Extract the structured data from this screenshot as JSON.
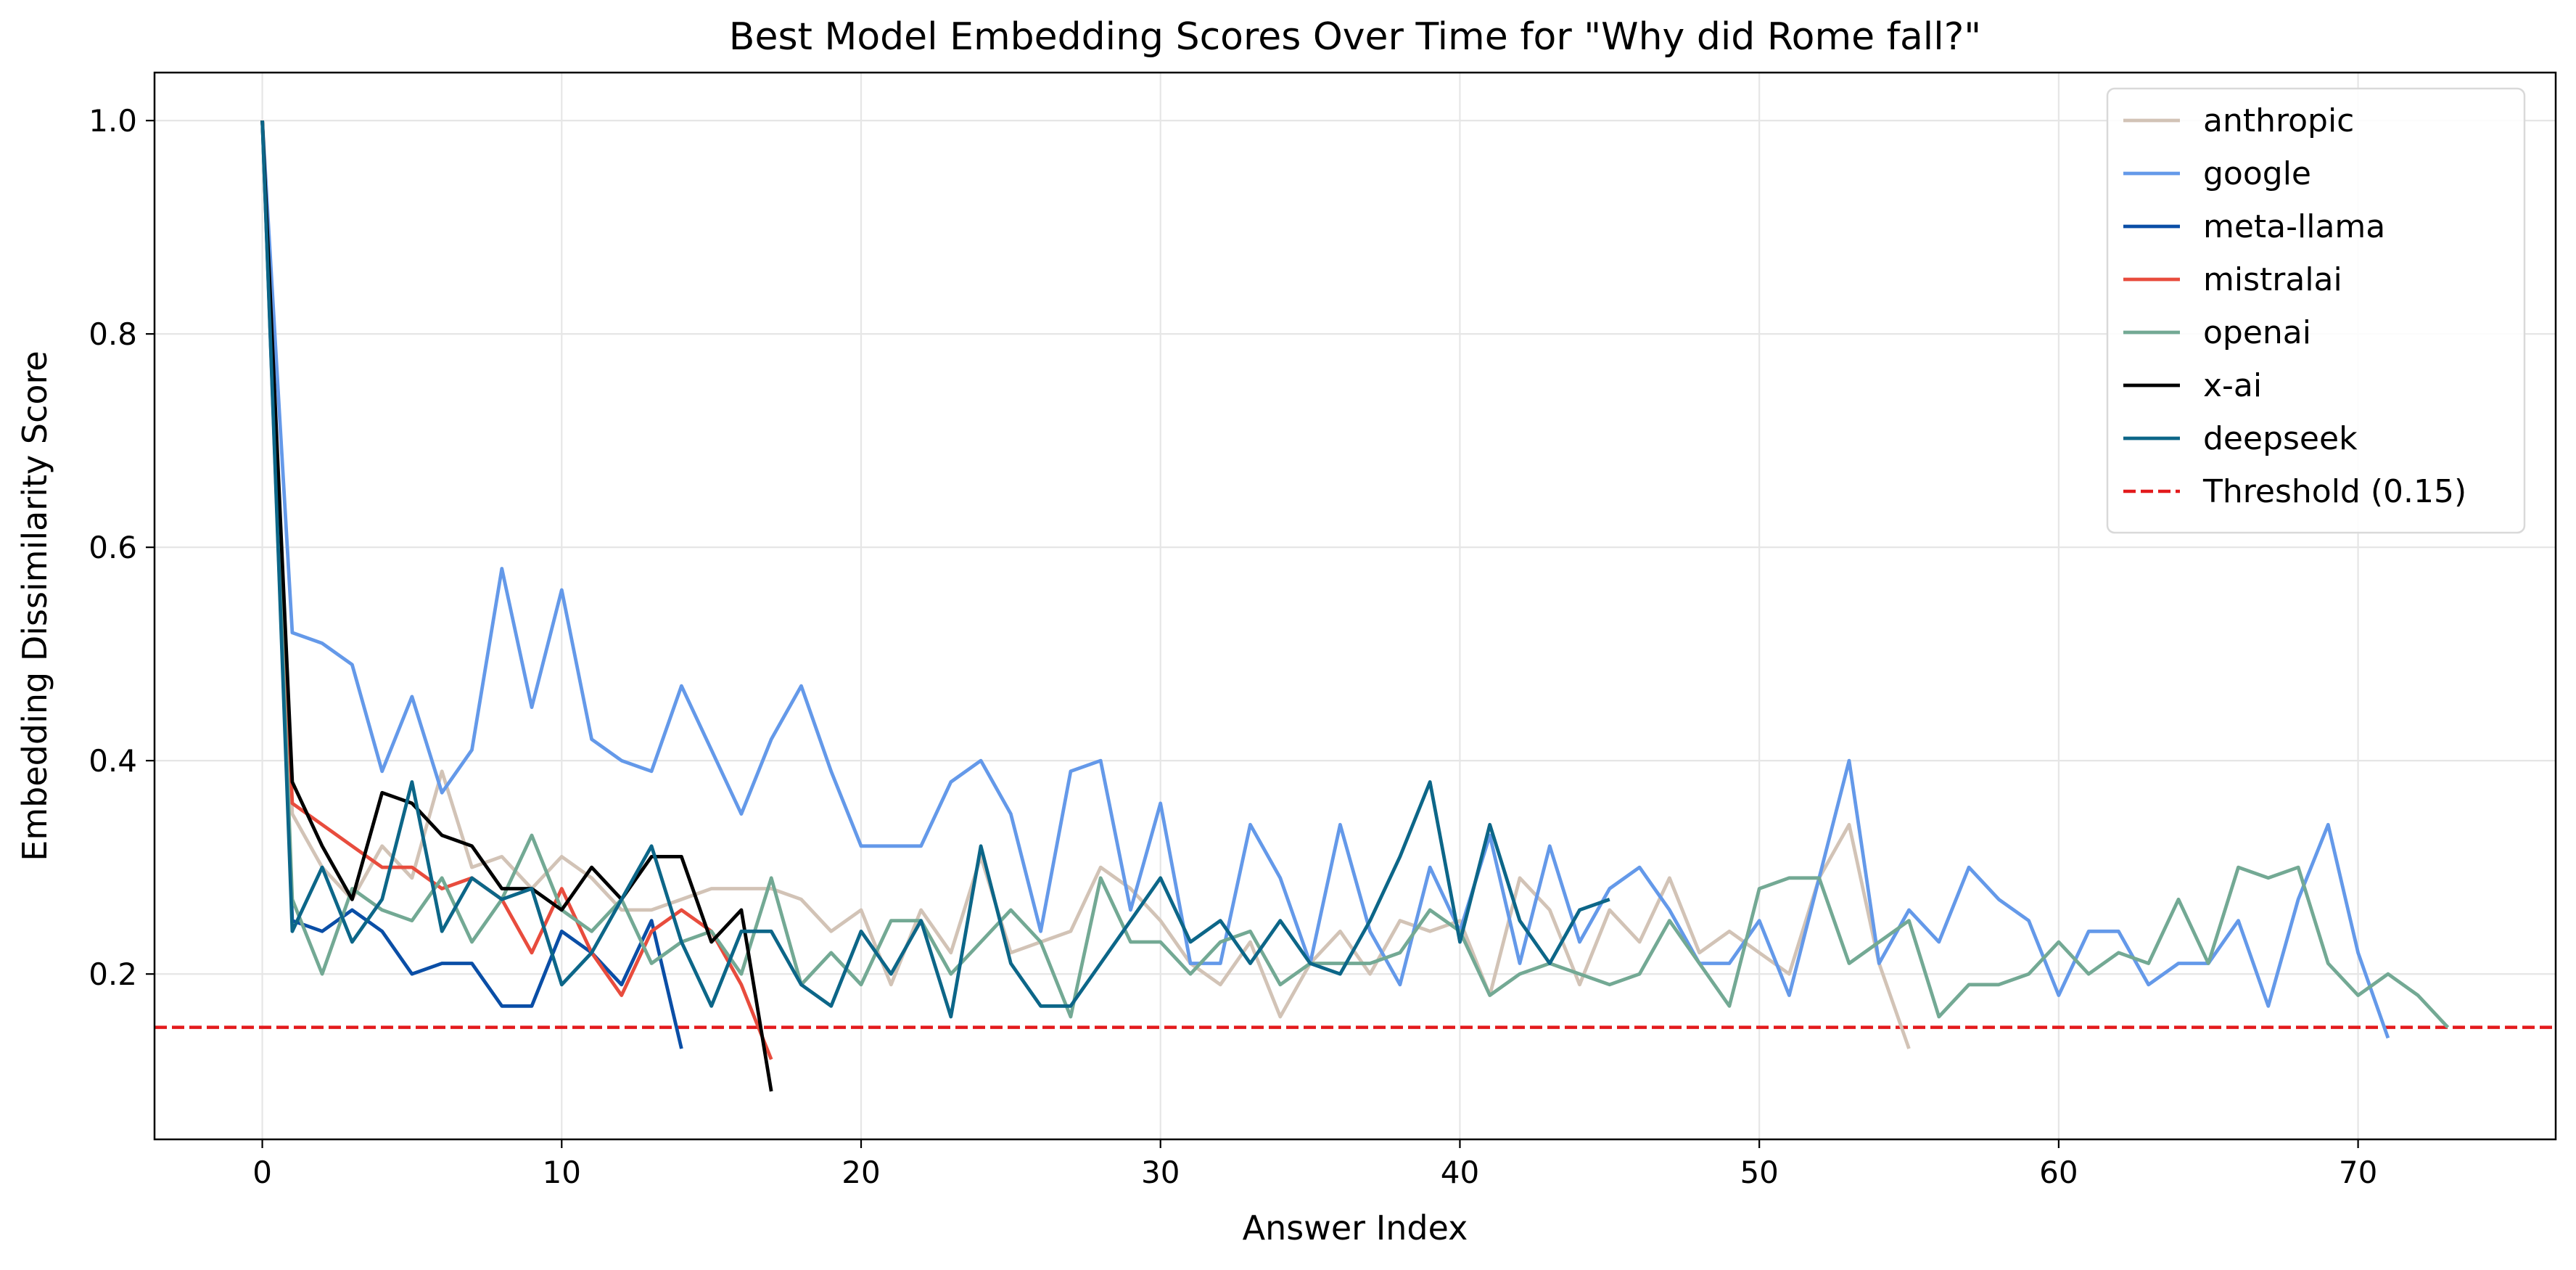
{
  "chart_data": {
    "type": "line",
    "title": "Best Model Embedding Scores Over Time for \"Why did Rome fall?\"",
    "xlabel": "Answer Index",
    "ylabel": "Embedding Dissimilarity Score",
    "xlim": [
      -3.6,
      76.6
    ],
    "ylim": [
      0.045,
      1.045
    ],
    "xticks": [
      0,
      10,
      20,
      30,
      40,
      50,
      60,
      70
    ],
    "yticks": [
      0.2,
      0.4,
      0.6,
      0.8,
      1.0
    ],
    "grid": true,
    "legend_position": "top-right",
    "series": [
      {
        "name": "anthropic",
        "color": "#d2c3b6",
        "values": [
          1.0,
          0.35,
          0.3,
          0.27,
          0.32,
          0.29,
          0.39,
          0.3,
          0.31,
          0.28,
          0.31,
          0.29,
          0.26,
          0.26,
          0.27,
          0.28,
          0.28,
          0.28,
          0.27,
          0.24,
          0.26,
          0.19,
          0.26,
          0.22,
          0.31,
          0.22,
          0.23,
          0.24,
          0.3,
          0.28,
          0.25,
          0.21,
          0.19,
          0.23,
          0.16,
          0.21,
          0.24,
          0.2,
          0.25,
          0.24,
          0.25,
          0.18,
          0.29,
          0.26,
          0.19,
          0.26,
          0.23,
          0.29,
          0.22,
          0.24,
          0.22,
          0.2,
          0.29,
          0.34,
          0.21,
          0.13
        ]
      },
      {
        "name": "google",
        "color": "#6499e9",
        "values": [
          1.0,
          0.52,
          0.51,
          0.49,
          0.39,
          0.46,
          0.37,
          0.41,
          0.58,
          0.45,
          0.56,
          0.42,
          0.4,
          0.39,
          0.47,
          0.41,
          0.35,
          0.42,
          0.47,
          0.39,
          0.32,
          0.32,
          0.32,
          0.38,
          0.4,
          0.35,
          0.24,
          0.39,
          0.4,
          0.26,
          0.36,
          0.21,
          0.21,
          0.34,
          0.29,
          0.21,
          0.34,
          0.24,
          0.19,
          0.3,
          0.24,
          0.33,
          0.21,
          0.32,
          0.23,
          0.28,
          0.3,
          0.26,
          0.21,
          0.21,
          0.25,
          0.18,
          0.29,
          0.4,
          0.21,
          0.26,
          0.23,
          0.3,
          0.27,
          0.25,
          0.18,
          0.24,
          0.24,
          0.19,
          0.21,
          0.21,
          0.25,
          0.17,
          0.27,
          0.34,
          0.22,
          0.14
        ]
      },
      {
        "name": "meta-llama",
        "color": "#0a4ea6",
        "values": [
          1.0,
          0.25,
          0.24,
          0.26,
          0.24,
          0.2,
          0.21,
          0.21,
          0.17,
          0.17,
          0.24,
          0.22,
          0.19,
          0.25,
          0.13
        ]
      },
      {
        "name": "mistralai",
        "color": "#e84c3d",
        "values": [
          1.0,
          0.36,
          0.34,
          0.32,
          0.3,
          0.3,
          0.28,
          0.29,
          0.27,
          0.22,
          0.28,
          0.22,
          0.18,
          0.24,
          0.26,
          0.24,
          0.19,
          0.12
        ]
      },
      {
        "name": "openai",
        "color": "#73a994",
        "values": [
          1.0,
          0.27,
          0.2,
          0.28,
          0.26,
          0.25,
          0.29,
          0.23,
          0.27,
          0.33,
          0.26,
          0.24,
          0.27,
          0.21,
          0.23,
          0.24,
          0.2,
          0.29,
          0.19,
          0.22,
          0.19,
          0.25,
          0.25,
          0.2,
          0.23,
          0.26,
          0.23,
          0.16,
          0.29,
          0.23,
          0.23,
          0.2,
          0.23,
          0.24,
          0.19,
          0.21,
          0.21,
          0.21,
          0.22,
          0.26,
          0.24,
          0.18,
          0.2,
          0.21,
          0.2,
          0.19,
          0.2,
          0.25,
          0.21,
          0.17,
          0.28,
          0.29,
          0.29,
          0.21,
          0.23,
          0.25,
          0.16,
          0.19,
          0.19,
          0.2,
          0.23,
          0.2,
          0.22,
          0.21,
          0.27,
          0.21,
          0.3,
          0.29,
          0.3,
          0.21,
          0.18,
          0.2,
          0.18,
          0.15
        ]
      },
      {
        "name": "x-ai",
        "color": "#000000",
        "values": [
          1.0,
          0.38,
          0.32,
          0.27,
          0.37,
          0.36,
          0.33,
          0.32,
          0.28,
          0.28,
          0.26,
          0.3,
          0.27,
          0.31,
          0.31,
          0.23,
          0.26,
          0.09
        ]
      },
      {
        "name": "deepseek",
        "color": "#0c6688",
        "values": [
          1.0,
          0.24,
          0.3,
          0.23,
          0.27,
          0.38,
          0.24,
          0.29,
          0.27,
          0.28,
          0.19,
          0.22,
          0.27,
          0.32,
          0.23,
          0.17,
          0.24,
          0.24,
          0.19,
          0.17,
          0.24,
          0.2,
          0.25,
          0.16,
          0.32,
          0.21,
          0.17,
          0.17,
          0.21,
          0.25,
          0.29,
          0.23,
          0.25,
          0.21,
          0.25,
          0.21,
          0.2,
          0.25,
          0.31,
          0.38,
          0.23,
          0.34,
          0.25,
          0.21,
          0.26,
          0.27
        ]
      }
    ],
    "threshold": {
      "name": "Threshold (0.15)",
      "value": 0.15,
      "color": "#e31a1c",
      "style": "dashed"
    }
  }
}
